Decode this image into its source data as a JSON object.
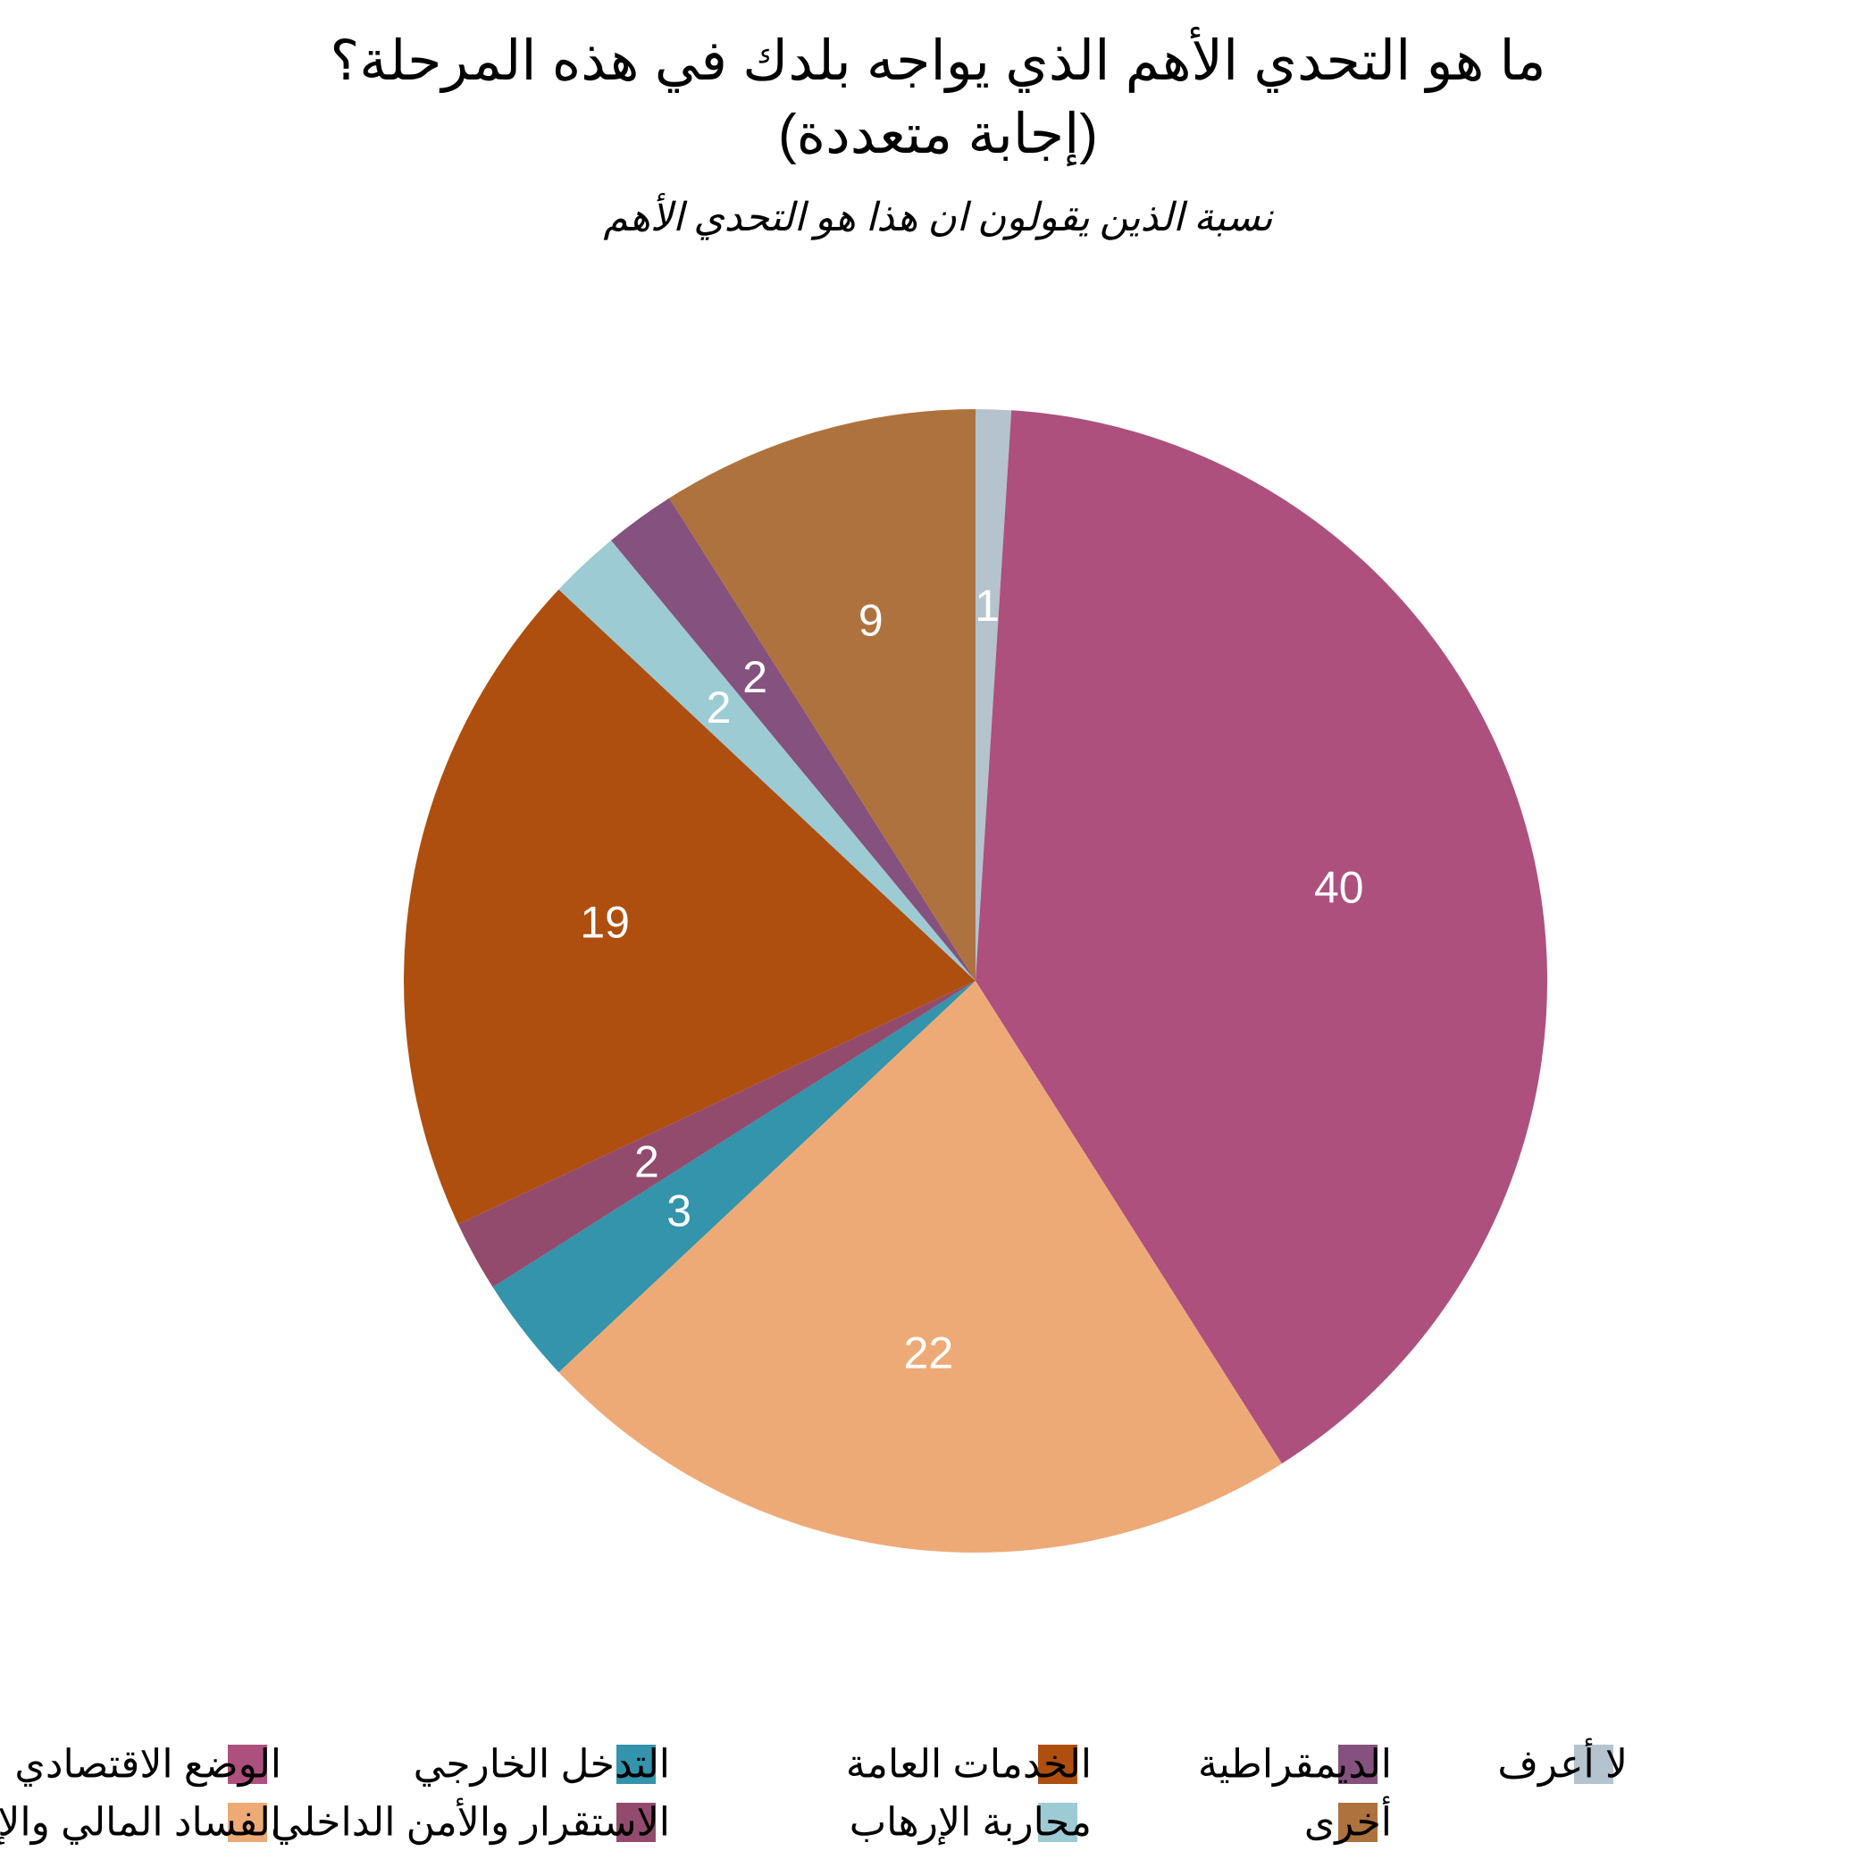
{
  "chart_data": {
    "type": "pie",
    "title_lines": [
      "ما هو التحدي الأهم الذي يواجه بلدك في هذه المرحلة؟",
      "(إجابة متعددة)"
    ],
    "subtitle": "نسبة الذين يقولون ان هذا هو التحدي الأهم",
    "slices": [
      {
        "label": "لا أعرف",
        "value": 1,
        "color": "#B4C3CE"
      },
      {
        "label": "الوضع الاقتصادي",
        "value": 40,
        "color": "#AD507D"
      },
      {
        "label": "الفساد المالي والإداري",
        "value": 22,
        "color": "#EEAA76"
      },
      {
        "label": "التدخل الخارجي",
        "value": 3,
        "color": "#3394AB"
      },
      {
        "label": "الاستقرار والأمن الداخلي",
        "value": 2,
        "color": "#934B6D"
      },
      {
        "label": "الخدمات العامة",
        "value": 19,
        "color": "#AE4F0F"
      },
      {
        "label": "محاربة الإرهاب",
        "value": 2,
        "color": "#9DCBD3"
      },
      {
        "label": "الديمقراطية",
        "value": 2,
        "color": "#85517E"
      },
      {
        "label": "أخرى",
        "value": 9,
        "color": "#AE723E"
      }
    ],
    "legend_order": [
      "الوضع الاقتصادي",
      "الفساد المالي والإداري",
      "التدخل الخارجي",
      "الاستقرار والأمن الداخلي",
      "الخدمات العامة",
      "محاربة الإرهاب",
      "الديمقراطية",
      "أخرى",
      "لا أعرف"
    ],
    "legend_position": "bottom"
  }
}
